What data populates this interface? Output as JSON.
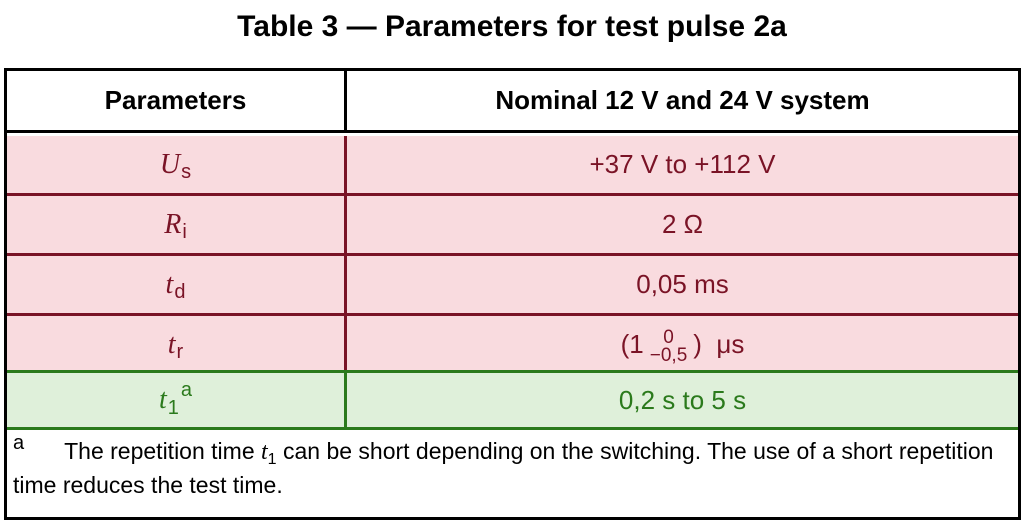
{
  "title": "Table 3 — Parameters for test pulse 2a",
  "header": {
    "col1": "Parameters",
    "col2": "Nominal 12 V and 24 V system"
  },
  "rows": [
    {
      "symbol": "U",
      "sub": "s",
      "value": "+37 V to +112 V"
    },
    {
      "symbol": "R",
      "sub": "i",
      "value": "2 Ω"
    },
    {
      "symbol": "t",
      "sub": "d",
      "value": "0,05 ms"
    },
    {
      "symbol": "t",
      "sub": "r",
      "value_pre": "(1",
      "tol_upper": "0",
      "tol_lower": "−0,5",
      "value_post": ")  μs"
    },
    {
      "symbol": "t",
      "sub": "1",
      "sup": "a",
      "value": "0,2 s to 5 s"
    }
  ],
  "footnote": {
    "mark": "a",
    "text_before": "The repetition time ",
    "symbol": "t",
    "sub": "1",
    "text_after": " can be short depending on the switching. The use of a short repetition time reduces the test time."
  },
  "colors": {
    "pink_bg": "#f9dbdf",
    "pink_text": "#7a1326",
    "green_bg": "#dff0da",
    "green_text": "#2b7a1c"
  }
}
